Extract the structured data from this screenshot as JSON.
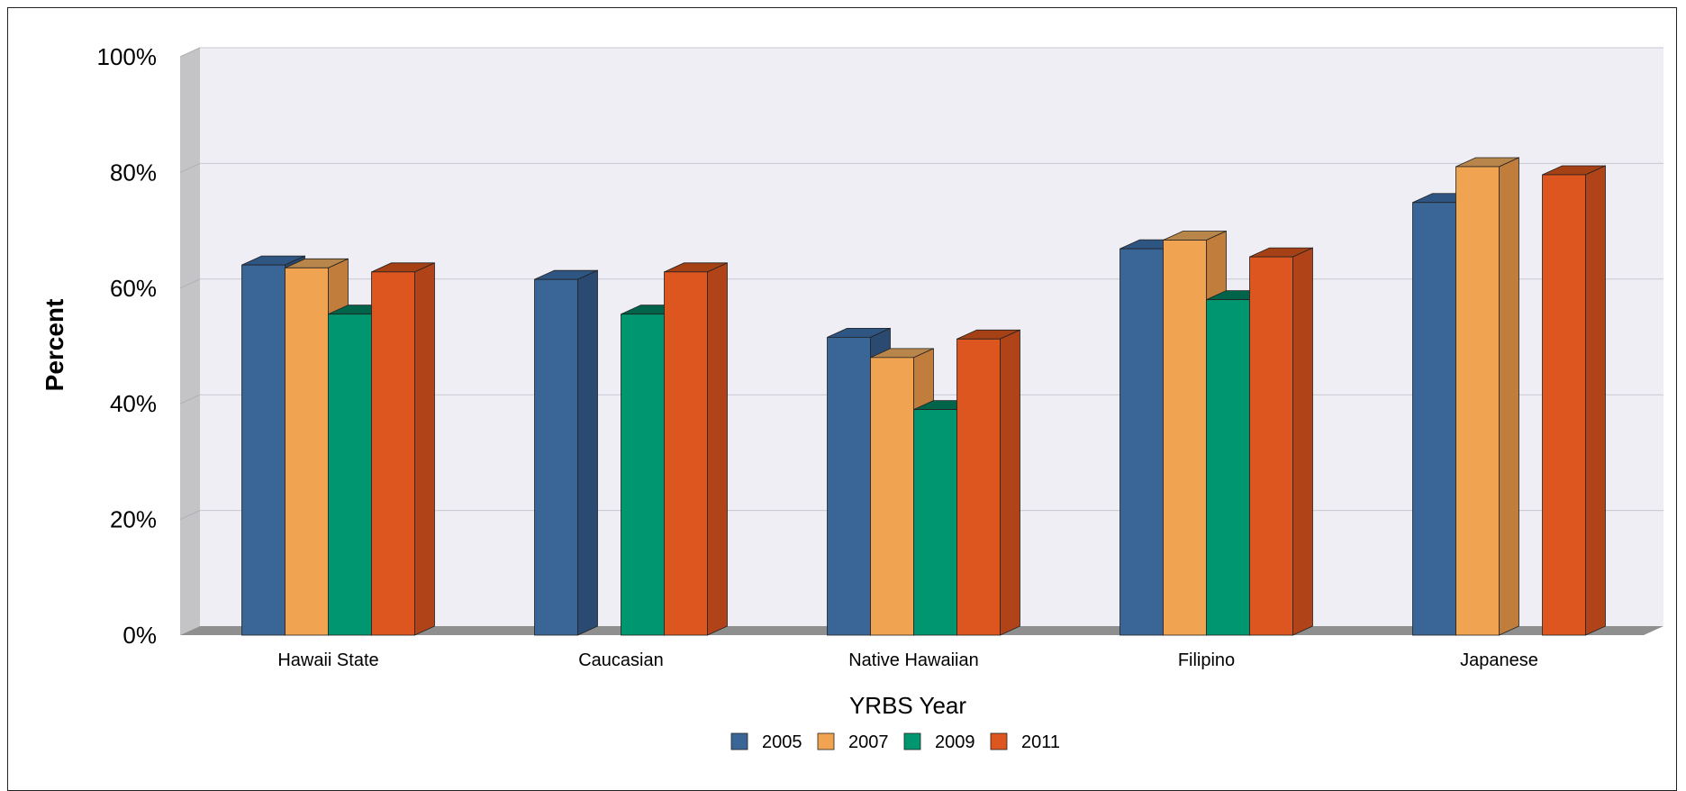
{
  "chart_data": {
    "type": "bar",
    "style": "3d-clustered",
    "categories": [
      "Hawaii State",
      "Caucasian",
      "Native Hawaiian",
      "Filipino",
      "Japanese"
    ],
    "series": [
      {
        "name": "2005",
        "color": "#3a6597",
        "side_color": "#2a4a72",
        "top_color": "#2f5583",
        "values": [
          64,
          61.5,
          51.5,
          66.8,
          74.8
        ]
      },
      {
        "name": "2007",
        "color": "#f0a452",
        "side_color": "#c07d3c",
        "top_color": "#b8864a",
        "values": [
          63.5,
          null,
          48,
          68.3,
          81
        ]
      },
      {
        "name": "2009",
        "color": "#009670",
        "side_color": "#006a4e",
        "top_color": "#00644a",
        "values": [
          55.5,
          55.5,
          39,
          58,
          null
        ]
      },
      {
        "name": "2011",
        "color": "#dd561f",
        "side_color": "#b04418",
        "top_color": "#a64015",
        "values": [
          62.8,
          62.8,
          51.2,
          65.4,
          79.6
        ]
      }
    ],
    "xlabel": "YRBS Year",
    "ylabel": "Percent",
    "yticks": [
      "0%",
      "20%",
      "40%",
      "60%",
      "80%",
      "100%"
    ],
    "ylim": [
      0,
      100
    ],
    "grid": true,
    "legend_position": "bottom-center"
  }
}
